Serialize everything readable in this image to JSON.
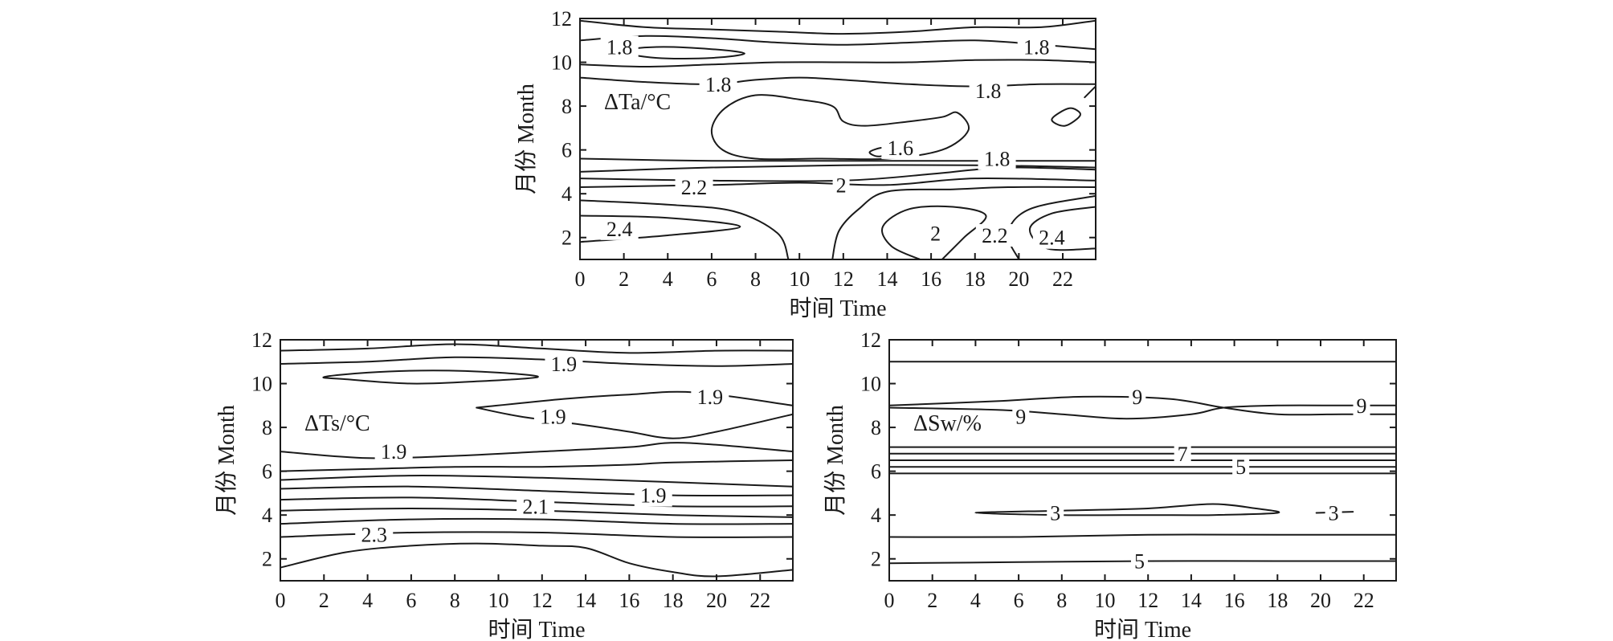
{
  "chart_data": [
    {
      "type": "contour",
      "panel_label": "ΔTa/°C",
      "xlabel": "时间 Time",
      "ylabel": "月份 Month",
      "xlim": [
        0,
        23.5
      ],
      "ylim": [
        1,
        12
      ],
      "xticks": [
        "0",
        "2",
        "4",
        "6",
        "8",
        "10",
        "12",
        "14",
        "16",
        "18",
        "20",
        "22"
      ],
      "yticks": [
        "2",
        "4",
        "6",
        "8",
        "10",
        "12"
      ],
      "contour_labels": [
        {
          "text": "1.8",
          "x": 1.8,
          "y": 10.7
        },
        {
          "text": "1.8",
          "x": 6.3,
          "y": 9.0
        },
        {
          "text": "1.8",
          "x": 20.8,
          "y": 10.7
        },
        {
          "text": "1.8",
          "x": 18.6,
          "y": 8.7
        },
        {
          "text": "1.8",
          "x": 19.0,
          "y": 5.6
        },
        {
          "text": "1.6",
          "x": 14.6,
          "y": 6.1
        },
        {
          "text": "2.2",
          "x": 5.2,
          "y": 4.3
        },
        {
          "text": "2",
          "x": 11.9,
          "y": 4.4
        },
        {
          "text": "2",
          "x": 16.2,
          "y": 2.2
        },
        {
          "text": "2.2",
          "x": 18.9,
          "y": 2.1
        },
        {
          "text": "2.4",
          "x": 1.8,
          "y": 2.4
        },
        {
          "text": "2.4",
          "x": 21.5,
          "y": 2.0
        }
      ]
    },
    {
      "type": "contour",
      "panel_label": "ΔTs/°C",
      "xlabel": "时间 Time",
      "ylabel": "月份 Month",
      "xlim": [
        0,
        23.5
      ],
      "ylim": [
        1,
        12
      ],
      "xticks": [
        "0",
        "2",
        "4",
        "6",
        "8",
        "10",
        "12",
        "14",
        "16",
        "18",
        "20",
        "22"
      ],
      "yticks": [
        "2",
        "4",
        "6",
        "8",
        "10",
        "12"
      ],
      "contour_labels": [
        {
          "text": "1.9",
          "x": 13.0,
          "y": 10.9
        },
        {
          "text": "1.9",
          "x": 19.7,
          "y": 9.4
        },
        {
          "text": "1.9",
          "x": 12.5,
          "y": 8.5
        },
        {
          "text": "1.9",
          "x": 5.2,
          "y": 6.9
        },
        {
          "text": "1.9",
          "x": 17.1,
          "y": 4.9
        },
        {
          "text": "2.1",
          "x": 11.7,
          "y": 4.4
        },
        {
          "text": "2.3",
          "x": 4.3,
          "y": 3.1
        }
      ]
    },
    {
      "type": "contour",
      "panel_label": "ΔSw/%",
      "xlabel": "时间 Time",
      "ylabel": "月份 Month",
      "xlim": [
        0,
        23.5
      ],
      "ylim": [
        1,
        12
      ],
      "xticks": [
        "0",
        "2",
        "4",
        "6",
        "8",
        "10",
        "12",
        "14",
        "16",
        "18",
        "20",
        "22"
      ],
      "yticks": [
        "2",
        "4",
        "6",
        "8",
        "10",
        "12"
      ],
      "contour_labels": [
        {
          "text": "9",
          "x": 11.5,
          "y": 9.4
        },
        {
          "text": "9",
          "x": 6.1,
          "y": 8.5
        },
        {
          "text": "9",
          "x": 21.9,
          "y": 9.0
        },
        {
          "text": "7",
          "x": 13.6,
          "y": 6.8
        },
        {
          "text": "5",
          "x": 16.3,
          "y": 6.2
        },
        {
          "text": "3",
          "x": 7.7,
          "y": 4.1
        },
        {
          "text": "3",
          "x": 20.6,
          "y": 4.1
        },
        {
          "text": "5",
          "x": 11.6,
          "y": 1.9
        }
      ]
    }
  ]
}
